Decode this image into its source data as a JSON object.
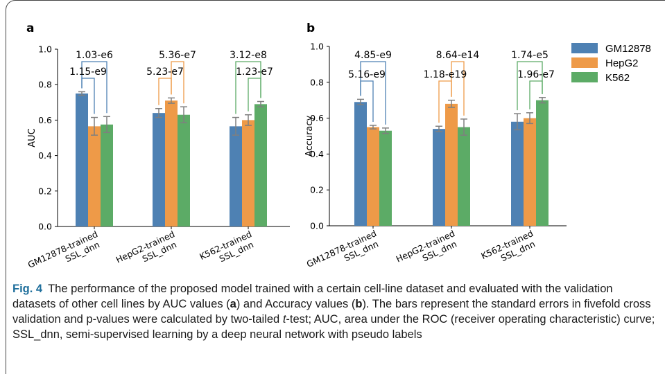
{
  "figure": {
    "panel_labels": [
      "a",
      "b"
    ],
    "caption": {
      "label": "Fig. 4",
      "part1": "The performance of the proposed model trained with a certain cell-line dataset and evaluated with the validation datasets of other cell lines by AUC values (",
      "a": "a",
      "part2": ") and Accuracy values (",
      "b": "b",
      "part3": "). The bars represent the standard errors in fivefold cross validation and p-values were calculated by two-tailed ",
      "t": "t",
      "part4": "-test; AUC, area under the ROC (receiver operating characteristic) curve; SSL_dnn, semi-supervised learning by a deep neural network with pseudo labels"
    }
  },
  "legend": [
    {
      "name": "GM12878",
      "color": "#4e81b3"
    },
    {
      "name": "HepG2",
      "color": "#ee9a48"
    },
    {
      "name": "K562",
      "color": "#5cab66"
    }
  ],
  "colors": {
    "GM12878": "#4e81b3",
    "HepG2": "#ee9a48",
    "K562": "#5cab66",
    "errorbar": "#7f7f7f",
    "axis": "#000000"
  },
  "chart_data": [
    {
      "type": "bar",
      "panel": "a",
      "ylabel": "AUC",
      "ylim": [
        0,
        1.0
      ],
      "yticks": [
        "0.0",
        "0.2",
        "0.4",
        "0.6",
        "0.8",
        "1.0"
      ],
      "categories": [
        [
          "GM12878-trained",
          "SSL_dnn"
        ],
        [
          "HepG2-trained",
          "SSL_dnn"
        ],
        [
          "K562-trained",
          "SSL_dnn"
        ]
      ],
      "series": [
        {
          "name": "GM12878",
          "values": [
            0.75,
            0.64,
            0.565
          ],
          "errors": [
            0.01,
            0.025,
            0.05
          ]
        },
        {
          "name": "HepG2",
          "values": [
            0.565,
            0.71,
            0.6
          ],
          "errors": [
            0.05,
            0.015,
            0.03
          ]
        },
        {
          "name": "K562",
          "values": [
            0.575,
            0.63,
            0.69
          ],
          "errors": [
            0.045,
            0.045,
            0.015
          ]
        }
      ],
      "pvalues": [
        {
          "group": 0,
          "from": 0,
          "to": 2,
          "label": "1.03-e6"
        },
        {
          "group": 0,
          "from": 0,
          "to": 1,
          "label": "1.15-e9"
        },
        {
          "group": 1,
          "from": 1,
          "to": 2,
          "label": "5.36-e7"
        },
        {
          "group": 1,
          "from": 1,
          "to": 0,
          "label": "5.23-e7"
        },
        {
          "group": 2,
          "from": 2,
          "to": 0,
          "label": "3.12-e8"
        },
        {
          "group": 2,
          "from": 2,
          "to": 1,
          "label": "1.23-e7"
        }
      ]
    },
    {
      "type": "bar",
      "panel": "b",
      "ylabel": "Accuracy",
      "ylim": [
        0,
        1.0
      ],
      "yticks": [
        "0.0",
        "0.2",
        "0.4",
        "0.6",
        "0.8",
        "1.0"
      ],
      "categories": [
        [
          "GM12878-trained",
          "SSL_dnn"
        ],
        [
          "HepG2-trained",
          "SSL_dnn"
        ],
        [
          "K562-trained",
          "SSL_dnn"
        ]
      ],
      "series": [
        {
          "name": "GM12878",
          "values": [
            0.69,
            0.54,
            0.58
          ],
          "errors": [
            0.015,
            0.015,
            0.045
          ]
        },
        {
          "name": "HepG2",
          "values": [
            0.55,
            0.68,
            0.6
          ],
          "errors": [
            0.01,
            0.02,
            0.03
          ]
        },
        {
          "name": "K562",
          "values": [
            0.53,
            0.55,
            0.7
          ],
          "errors": [
            0.015,
            0.045,
            0.015
          ]
        }
      ],
      "pvalues": [
        {
          "group": 0,
          "from": 0,
          "to": 2,
          "label": "4.85-e9"
        },
        {
          "group": 0,
          "from": 0,
          "to": 1,
          "label": "5.16-e9"
        },
        {
          "group": 1,
          "from": 1,
          "to": 2,
          "label": "8.64-e14"
        },
        {
          "group": 1,
          "from": 1,
          "to": 0,
          "label": "1.18-e19"
        },
        {
          "group": 2,
          "from": 2,
          "to": 0,
          "label": "1.74-e5"
        },
        {
          "group": 2,
          "from": 2,
          "to": 1,
          "label": "1.96-e7"
        }
      ]
    }
  ]
}
